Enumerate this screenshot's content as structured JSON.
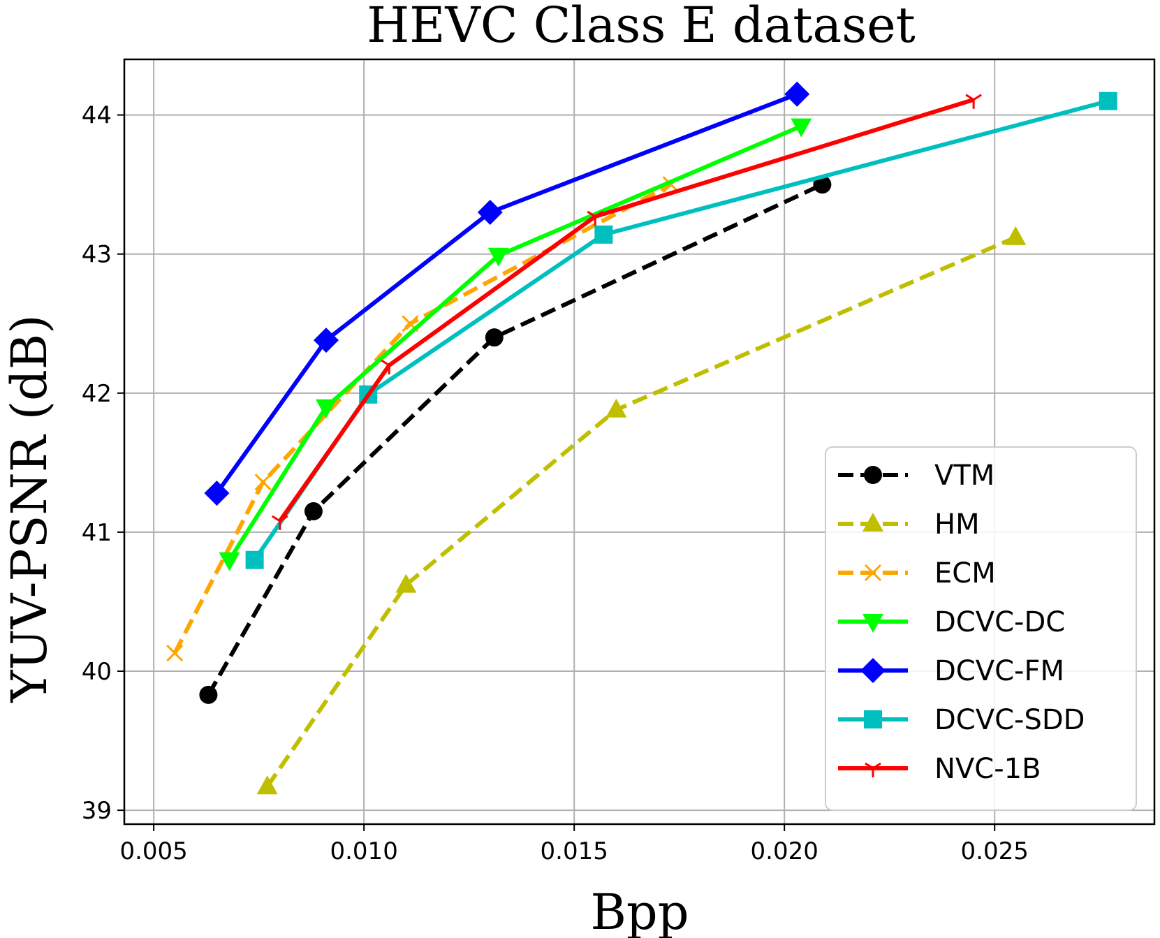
{
  "chart_data": {
    "type": "line",
    "title": "HEVC Class E dataset",
    "xlabel": "Bpp",
    "ylabel": "YUV-PSNR (dB)",
    "xlim": [
      0.0043,
      0.0288
    ],
    "ylim": [
      38.9,
      44.4
    ],
    "xticks": [
      0.005,
      0.01,
      0.015,
      0.02,
      0.025
    ],
    "xtick_labels": [
      "0.005",
      "0.010",
      "0.015",
      "0.020",
      "0.025"
    ],
    "yticks": [
      39,
      40,
      41,
      42,
      43,
      44
    ],
    "ytick_labels": [
      "39",
      "40",
      "41",
      "42",
      "43",
      "44"
    ],
    "grid": true,
    "legend_position": "lower-right",
    "series": [
      {
        "name": "VTM",
        "color": "#000000",
        "dash": "dashed",
        "marker": "circle",
        "x": [
          0.0063,
          0.0088,
          0.0131,
          0.0209
        ],
        "y": [
          39.83,
          41.15,
          42.4,
          43.5
        ]
      },
      {
        "name": "HM",
        "color": "#bfbf00",
        "dash": "dashed",
        "marker": "triangle-up",
        "x": [
          0.0077,
          0.011,
          0.016,
          0.0255
        ],
        "y": [
          39.17,
          40.62,
          41.88,
          43.12
        ]
      },
      {
        "name": "ECM",
        "color": "#ffa500",
        "dash": "dashed",
        "marker": "x",
        "x": [
          0.0055,
          0.0076,
          0.0111,
          0.0173
        ],
        "y": [
          40.13,
          41.36,
          42.5,
          43.5
        ]
      },
      {
        "name": "DCVC-DC",
        "color": "#00ff00",
        "dash": "solid",
        "marker": "triangle-down",
        "x": [
          0.0068,
          0.0091,
          0.0132,
          0.0204
        ],
        "y": [
          40.8,
          41.9,
          42.99,
          43.92
        ]
      },
      {
        "name": "DCVC-FM",
        "color": "#0000ff",
        "dash": "solid",
        "marker": "diamond",
        "x": [
          0.0065,
          0.0091,
          0.013,
          0.0203
        ],
        "y": [
          41.28,
          42.38,
          43.3,
          44.15
        ]
      },
      {
        "name": "DCVC-SDD",
        "color": "#00bfbf",
        "dash": "solid",
        "marker": "square",
        "x": [
          0.0074,
          0.0101,
          0.0157,
          0.0277
        ],
        "y": [
          40.8,
          41.99,
          43.14,
          44.1
        ]
      },
      {
        "name": "NVC-1B",
        "color": "#ff0000",
        "dash": "solid",
        "marker": "tri-down",
        "x": [
          0.008,
          0.0106,
          0.0155,
          0.0245
        ],
        "y": [
          41.08,
          42.2,
          43.27,
          44.11
        ]
      }
    ]
  }
}
